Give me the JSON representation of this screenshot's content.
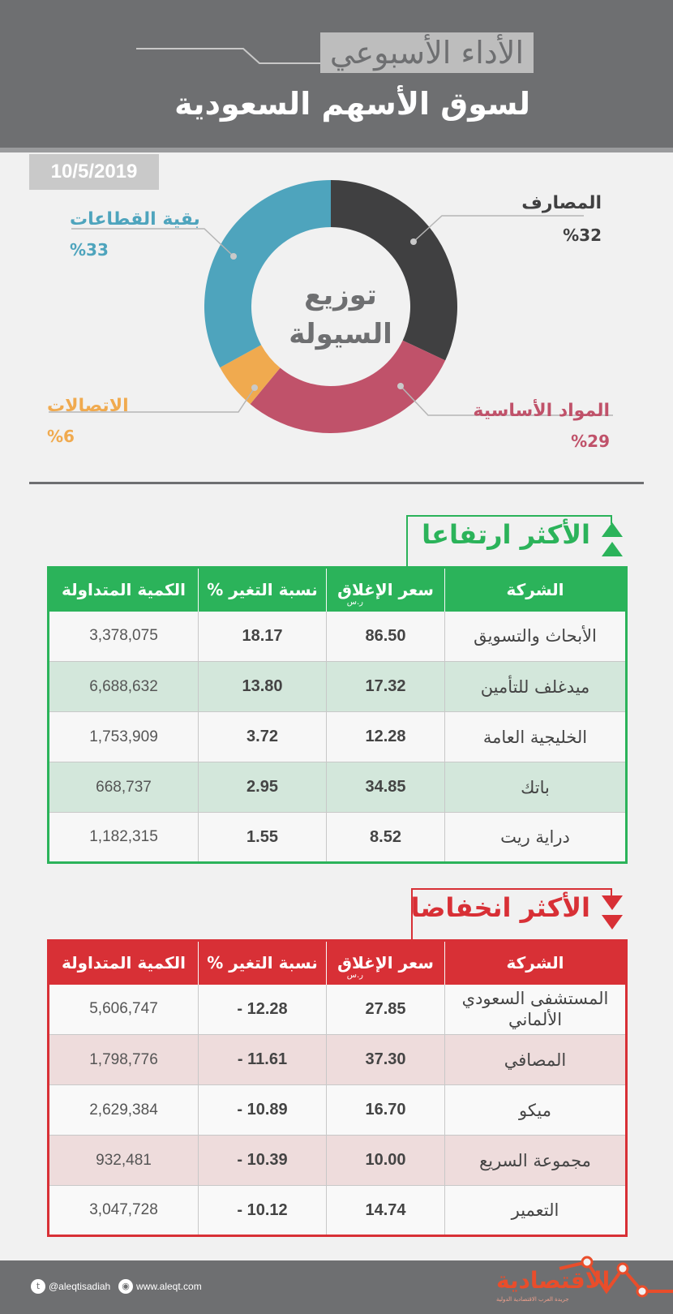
{
  "header": {
    "title_top": "الأداء الأسبوعي",
    "title_main": "لسوق الأسهم السعودية"
  },
  "date": "10/5/2019",
  "chart_data": {
    "type": "pie",
    "title": "توزيع السيولة",
    "slices": [
      {
        "label": "المصارف",
        "value": 32,
        "pct_text": "%32",
        "color": "#404041"
      },
      {
        "label": "المواد الأساسية",
        "value": 29,
        "pct_text": "%29",
        "color": "#c0526a"
      },
      {
        "label": "الاتصالات",
        "value": 6,
        "pct_text": "%6",
        "color": "#f0aa4f"
      },
      {
        "label": "بقية القطاعات",
        "value": 33,
        "pct_text": "%33",
        "color": "#4ea4bd"
      }
    ]
  },
  "gainers": {
    "title": "الأكثر ارتفاعا",
    "color": "#2bb35a",
    "headers": {
      "company": "الشركة",
      "close": "سعر الإغلاق",
      "unit": "ر.س",
      "change": "نسبة التغير %",
      "volume": "الكمية المتداولة"
    },
    "rows": [
      {
        "company": "الأبحاث والتسويق",
        "close": "86.50",
        "change": "18.17",
        "volume": "3,378,075"
      },
      {
        "company": "ميدغلف للتأمين",
        "close": "17.32",
        "change": "13.80",
        "volume": "6,688,632"
      },
      {
        "company": "الخليجية العامة",
        "close": "12.28",
        "change": "3.72",
        "volume": "1,753,909"
      },
      {
        "company": "باتك",
        "close": "34.85",
        "change": "2.95",
        "volume": "668,737"
      },
      {
        "company": "دراية ريت",
        "close": "8.52",
        "change": "1.55",
        "volume": "1,182,315"
      }
    ]
  },
  "losers": {
    "title": "الأكثر انخفاضا",
    "color": "#d83036",
    "headers": {
      "company": "الشركة",
      "close": "سعر الإغلاق",
      "unit": "ر.س",
      "change": "نسبة التغير %",
      "volume": "الكمية المتداولة"
    },
    "rows": [
      {
        "company": "المستشفى السعودي الألماني",
        "close": "27.85",
        "change": "- 12.28",
        "volume": "5,606,747"
      },
      {
        "company": "المصافي",
        "close": "37.30",
        "change": "- 11.61",
        "volume": "1,798,776"
      },
      {
        "company": "ميكو",
        "close": "16.70",
        "change": "- 10.89",
        "volume": "2,629,384"
      },
      {
        "company": "مجموعة السريع",
        "close": "10.00",
        "change": "- 10.39",
        "volume": "932,481"
      },
      {
        "company": "التعمير",
        "close": "14.74",
        "change": "- 10.12",
        "volume": "3,047,728"
      }
    ]
  },
  "footer": {
    "twitter": "@aleqtisadiah",
    "website": "www.aleqt.com",
    "brand": "الاقتصادية",
    "brand_sub": "جريدة العرب الاقتصادية الدولية",
    "icons": {
      "twitter": "twitter-icon",
      "website": "globe-icon"
    }
  }
}
